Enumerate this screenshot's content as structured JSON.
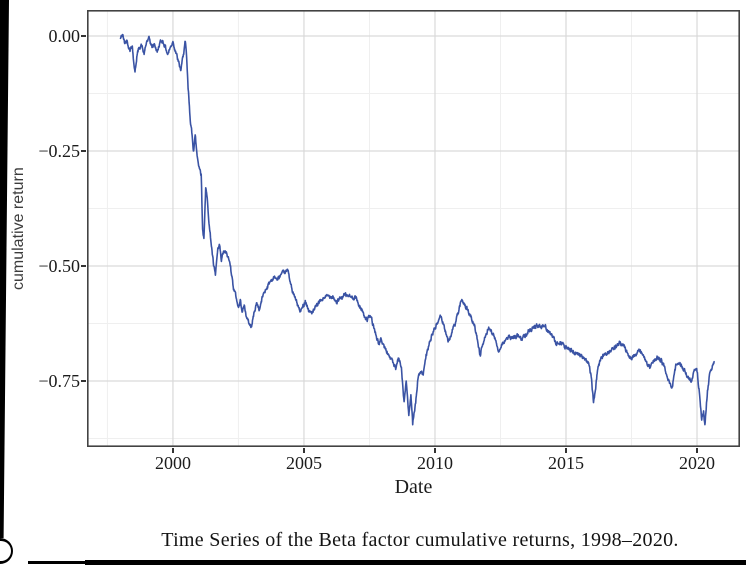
{
  "figure": {
    "y_axis_title": "cumulative return",
    "x_axis_title": "Date",
    "caption": "Time Series of the Beta factor cumulative returns, 1998–2020."
  },
  "chart_data": {
    "type": "line",
    "title": "",
    "xlabel": "Date",
    "ylabel": "cumulative return",
    "xlim": [
      1996.72,
      2021.64
    ],
    "ylim": [
      -0.8935,
      0.0565
    ],
    "grid": "major+minor",
    "legend": "none",
    "x_ticks": [
      2000,
      2005,
      2010,
      2015,
      2020
    ],
    "x_tick_labels": [
      "2000",
      "2005",
      "2010",
      "2015",
      "2020"
    ],
    "x_minor_ticks": [
      1997.5,
      2002.5,
      2007.5,
      2012.5,
      2017.5
    ],
    "y_ticks": [
      0,
      -0.25,
      -0.5,
      -0.75
    ],
    "y_tick_labels": [
      "0.00",
      "−0.25",
      "−0.50",
      "−0.75"
    ],
    "y_minor_ticks": [
      -0.125,
      -0.375,
      -0.625,
      -0.875
    ],
    "line_color": "#3a53a4",
    "grid_major_color": "#d9d9d9",
    "grid_minor_color": "#efefef",
    "border_color": "#434343",
    "series": [
      {
        "name": "Beta factor cumulative return",
        "color": "#3a53a4",
        "points": [
          [
            1998.0,
            -0.005
          ],
          [
            1998.08,
            0.003
          ],
          [
            1998.15,
            -0.015
          ],
          [
            1998.25,
            -0.01
          ],
          [
            1998.35,
            -0.03
          ],
          [
            1998.45,
            -0.022
          ],
          [
            1998.5,
            -0.055
          ],
          [
            1998.55,
            -0.078
          ],
          [
            1998.62,
            -0.045
          ],
          [
            1998.7,
            -0.025
          ],
          [
            1998.8,
            -0.02
          ],
          [
            1998.9,
            -0.04
          ],
          [
            1999.0,
            -0.012
          ],
          [
            1999.1,
            -0.006
          ],
          [
            1999.2,
            -0.025
          ],
          [
            1999.3,
            -0.018
          ],
          [
            1999.4,
            -0.035
          ],
          [
            1999.5,
            -0.015
          ],
          [
            1999.6,
            -0.01
          ],
          [
            1999.7,
            -0.022
          ],
          [
            1999.8,
            -0.04
          ],
          [
            1999.9,
            -0.025
          ],
          [
            2000.0,
            -0.012
          ],
          [
            2000.1,
            -0.033
          ],
          [
            2000.2,
            -0.055
          ],
          [
            2000.3,
            -0.075
          ],
          [
            2000.4,
            -0.04
          ],
          [
            2000.47,
            -0.012
          ],
          [
            2000.52,
            -0.045
          ],
          [
            2000.58,
            -0.115
          ],
          [
            2000.65,
            -0.175
          ],
          [
            2000.72,
            -0.21
          ],
          [
            2000.78,
            -0.25
          ],
          [
            2000.85,
            -0.215
          ],
          [
            2000.92,
            -0.26
          ],
          [
            2001.0,
            -0.285
          ],
          [
            2001.08,
            -0.3
          ],
          [
            2001.13,
            -0.42
          ],
          [
            2001.18,
            -0.44
          ],
          [
            2001.25,
            -0.33
          ],
          [
            2001.32,
            -0.36
          ],
          [
            2001.4,
            -0.42
          ],
          [
            2001.48,
            -0.46
          ],
          [
            2001.55,
            -0.5
          ],
          [
            2001.62,
            -0.52
          ],
          [
            2001.7,
            -0.47
          ],
          [
            2001.78,
            -0.455
          ],
          [
            2001.85,
            -0.49
          ],
          [
            2001.92,
            -0.47
          ],
          [
            2002.0,
            -0.47
          ],
          [
            2002.1,
            -0.48
          ],
          [
            2002.2,
            -0.5
          ],
          [
            2002.3,
            -0.545
          ],
          [
            2002.4,
            -0.565
          ],
          [
            2002.5,
            -0.59
          ],
          [
            2002.58,
            -0.575
          ],
          [
            2002.65,
            -0.6
          ],
          [
            2002.72,
            -0.585
          ],
          [
            2002.8,
            -0.61
          ],
          [
            2002.9,
            -0.625
          ],
          [
            2003.0,
            -0.632
          ],
          [
            2003.1,
            -0.6
          ],
          [
            2003.2,
            -0.58
          ],
          [
            2003.3,
            -0.595
          ],
          [
            2003.45,
            -0.56
          ],
          [
            2003.6,
            -0.545
          ],
          [
            2003.75,
            -0.53
          ],
          [
            2003.9,
            -0.525
          ],
          [
            2004.0,
            -0.53
          ],
          [
            2004.1,
            -0.52
          ],
          [
            2004.25,
            -0.515
          ],
          [
            2004.4,
            -0.51
          ],
          [
            2004.55,
            -0.555
          ],
          [
            2004.7,
            -0.575
          ],
          [
            2004.85,
            -0.6
          ],
          [
            2004.95,
            -0.59
          ],
          [
            2005.05,
            -0.575
          ],
          [
            2005.2,
            -0.6
          ],
          [
            2005.35,
            -0.6
          ],
          [
            2005.5,
            -0.585
          ],
          [
            2005.65,
            -0.575
          ],
          [
            2005.8,
            -0.568
          ],
          [
            2005.95,
            -0.565
          ],
          [
            2006.1,
            -0.565
          ],
          [
            2006.25,
            -0.58
          ],
          [
            2006.4,
            -0.57
          ],
          [
            2006.55,
            -0.563
          ],
          [
            2006.7,
            -0.565
          ],
          [
            2006.85,
            -0.57
          ],
          [
            2006.95,
            -0.565
          ],
          [
            2007.1,
            -0.585
          ],
          [
            2007.25,
            -0.6
          ],
          [
            2007.4,
            -0.617
          ],
          [
            2007.55,
            -0.61
          ],
          [
            2007.7,
            -0.64
          ],
          [
            2007.85,
            -0.67
          ],
          [
            2007.95,
            -0.66
          ],
          [
            2008.1,
            -0.68
          ],
          [
            2008.25,
            -0.695
          ],
          [
            2008.4,
            -0.71
          ],
          [
            2008.5,
            -0.725
          ],
          [
            2008.6,
            -0.7
          ],
          [
            2008.72,
            -0.72
          ],
          [
            2008.82,
            -0.795
          ],
          [
            2008.9,
            -0.75
          ],
          [
            2009.0,
            -0.825
          ],
          [
            2009.08,
            -0.78
          ],
          [
            2009.15,
            -0.845
          ],
          [
            2009.25,
            -0.8
          ],
          [
            2009.35,
            -0.745
          ],
          [
            2009.45,
            -0.73
          ],
          [
            2009.55,
            -0.737
          ],
          [
            2009.65,
            -0.7
          ],
          [
            2009.8,
            -0.665
          ],
          [
            2009.95,
            -0.64
          ],
          [
            2010.1,
            -0.625
          ],
          [
            2010.2,
            -0.607
          ],
          [
            2010.35,
            -0.63
          ],
          [
            2010.5,
            -0.665
          ],
          [
            2010.65,
            -0.645
          ],
          [
            2010.8,
            -0.62
          ],
          [
            2010.95,
            -0.588
          ],
          [
            2011.05,
            -0.575
          ],
          [
            2011.2,
            -0.59
          ],
          [
            2011.35,
            -0.61
          ],
          [
            2011.5,
            -0.63
          ],
          [
            2011.62,
            -0.66
          ],
          [
            2011.72,
            -0.693
          ],
          [
            2011.82,
            -0.67
          ],
          [
            2011.92,
            -0.655
          ],
          [
            2012.05,
            -0.633
          ],
          [
            2012.15,
            -0.64
          ],
          [
            2012.3,
            -0.66
          ],
          [
            2012.42,
            -0.686
          ],
          [
            2012.55,
            -0.67
          ],
          [
            2012.7,
            -0.66
          ],
          [
            2012.85,
            -0.655
          ],
          [
            2013.0,
            -0.657
          ],
          [
            2013.15,
            -0.65
          ],
          [
            2013.3,
            -0.66
          ],
          [
            2013.45,
            -0.648
          ],
          [
            2013.6,
            -0.64
          ],
          [
            2013.75,
            -0.632
          ],
          [
            2013.9,
            -0.63
          ],
          [
            2014.05,
            -0.633
          ],
          [
            2014.2,
            -0.63
          ],
          [
            2014.35,
            -0.645
          ],
          [
            2014.5,
            -0.655
          ],
          [
            2014.65,
            -0.67
          ],
          [
            2014.8,
            -0.665
          ],
          [
            2014.95,
            -0.675
          ],
          [
            2015.1,
            -0.68
          ],
          [
            2015.25,
            -0.685
          ],
          [
            2015.4,
            -0.69
          ],
          [
            2015.55,
            -0.693
          ],
          [
            2015.7,
            -0.7
          ],
          [
            2015.85,
            -0.71
          ],
          [
            2015.95,
            -0.735
          ],
          [
            2016.05,
            -0.797
          ],
          [
            2016.12,
            -0.77
          ],
          [
            2016.2,
            -0.727
          ],
          [
            2016.35,
            -0.7
          ],
          [
            2016.5,
            -0.69
          ],
          [
            2016.65,
            -0.685
          ],
          [
            2016.8,
            -0.68
          ],
          [
            2016.95,
            -0.672
          ],
          [
            2017.05,
            -0.668
          ],
          [
            2017.2,
            -0.673
          ],
          [
            2017.35,
            -0.69
          ],
          [
            2017.5,
            -0.7
          ],
          [
            2017.65,
            -0.692
          ],
          [
            2017.8,
            -0.685
          ],
          [
            2017.95,
            -0.693
          ],
          [
            2018.1,
            -0.715
          ],
          [
            2018.22,
            -0.72
          ],
          [
            2018.35,
            -0.705
          ],
          [
            2018.5,
            -0.7
          ],
          [
            2018.65,
            -0.705
          ],
          [
            2018.8,
            -0.73
          ],
          [
            2018.95,
            -0.755
          ],
          [
            2019.05,
            -0.762
          ],
          [
            2019.2,
            -0.715
          ],
          [
            2019.35,
            -0.71
          ],
          [
            2019.5,
            -0.725
          ],
          [
            2019.65,
            -0.74
          ],
          [
            2019.8,
            -0.75
          ],
          [
            2019.9,
            -0.725
          ],
          [
            2020.0,
            -0.73
          ],
          [
            2020.1,
            -0.78
          ],
          [
            2020.18,
            -0.835
          ],
          [
            2020.25,
            -0.815
          ],
          [
            2020.3,
            -0.845
          ],
          [
            2020.4,
            -0.77
          ],
          [
            2020.5,
            -0.73
          ],
          [
            2020.6,
            -0.715
          ],
          [
            2020.65,
            -0.708
          ]
        ]
      }
    ]
  }
}
